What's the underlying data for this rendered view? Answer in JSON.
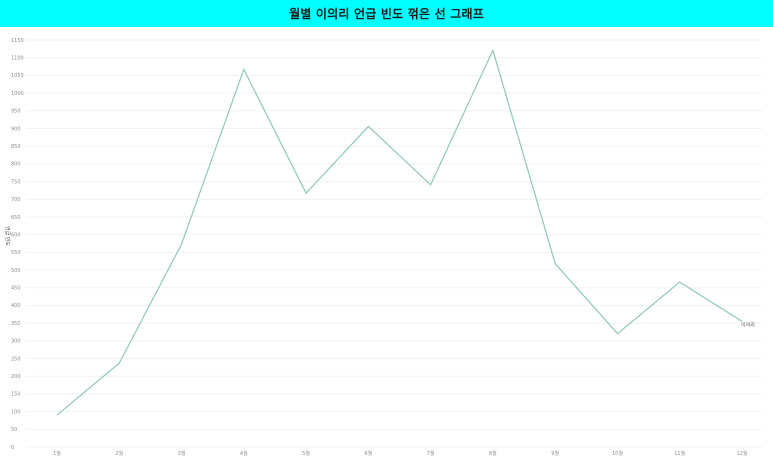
{
  "chart_data": {
    "type": "line",
    "title": "월별 이의리 언급 빈도 꺾은 선 그래프",
    "xlabel": "",
    "ylabel": "언급 빈도",
    "categories": [
      "1월",
      "2월",
      "3월",
      "4월",
      "5월",
      "6월",
      "7월",
      "8월",
      "9월",
      "10월",
      "11월",
      "12월"
    ],
    "series": [
      {
        "name": "이의리",
        "color": "#8fc9b5",
        "values": [
          90,
          237,
          573,
          1067,
          717,
          906,
          741,
          1121,
          518,
          320,
          466,
          355
        ]
      }
    ],
    "ylim": [
      0,
      1150
    ],
    "yticks": [
      0,
      50,
      100,
      150,
      200,
      250,
      300,
      350,
      400,
      450,
      500,
      550,
      600,
      650,
      700,
      750,
      800,
      850,
      900,
      950,
      1000,
      1050,
      1100,
      1150
    ],
    "grid": true,
    "legend": "end-of-line label"
  }
}
